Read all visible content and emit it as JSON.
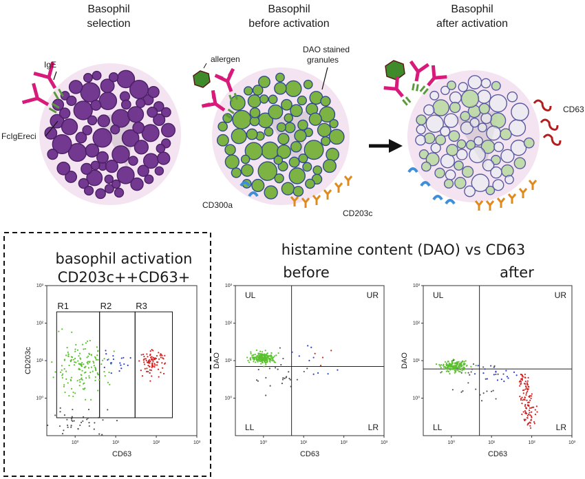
{
  "cells": {
    "selection": {
      "title1": "Basophil",
      "title2": "selection",
      "label_ige": "IgE",
      "label_receptor": "FcIgEreci"
    },
    "before": {
      "title1": "Basophil",
      "title2": "before activation",
      "label_allergen": "allergen",
      "label_granules1": "DAO stained",
      "label_granules2": "granules",
      "label_cd300a": "CD300a",
      "label_cd203c": "CD203c"
    },
    "after": {
      "title1": "Basophil",
      "title2": "after activation",
      "label_cd63": "CD63"
    }
  },
  "colors": {
    "basophil_granule": "#6b2f8a",
    "dao_granule": "#7cb342",
    "cell_body": "#f3e3f0",
    "ige": "#d81b7a",
    "receptor": "#5a9a3a",
    "cd300a": "#3f8ed8",
    "cd203c": "#e08a1e",
    "cd63": "#b71c1c",
    "allergen": "#3f8a2a"
  },
  "panels": {
    "activation": {
      "heading1": "basophil activation",
      "heading2": "CD203c++CD63+"
    },
    "histamine": {
      "heading": "histamine content (DAO) vs CD63"
    },
    "before": {
      "heading": "before"
    },
    "after": {
      "heading": "after"
    }
  },
  "chart_data": [
    {
      "type": "scatter",
      "xlabel": "CD63",
      "ylabel": "CD203c",
      "x_ticks": [
        "10⁰",
        "10¹",
        "10²",
        "10³"
      ],
      "y_ticks": [
        "10⁰",
        "10¹",
        "10²",
        "10³"
      ],
      "x_scale": "log",
      "y_scale": "log",
      "xlim": [
        0.2,
        1000
      ],
      "ylim": [
        0.1,
        1000
      ],
      "gates": [
        {
          "name": "R1",
          "x": [
            0.35,
            4
          ],
          "y": [
            0.3,
            200
          ]
        },
        {
          "name": "R2",
          "x": [
            4,
            30
          ],
          "y": [
            0.3,
            200
          ]
        },
        {
          "name": "R3",
          "x": [
            30,
            250
          ],
          "y": [
            0.3,
            200
          ]
        }
      ],
      "series": [
        {
          "color": "#5ac02e",
          "cluster": {
            "x": 1.3,
            "y": 6,
            "sx": 0.35,
            "sy": 0.35,
            "n": 150
          }
        },
        {
          "color": "#2a3fd0",
          "cluster": {
            "x": 10,
            "y": 9,
            "sx": 0.25,
            "sy": 0.12,
            "n": 18
          }
        },
        {
          "color": "#d42020",
          "cluster": {
            "x": 80,
            "y": 9,
            "sx": 0.15,
            "sy": 0.15,
            "n": 90
          }
        },
        {
          "color": "#555555",
          "cluster": {
            "x": 1.2,
            "y": 0.22,
            "sx": 0.45,
            "sy": 0.2,
            "n": 40
          }
        }
      ]
    },
    {
      "type": "scatter",
      "xlabel": "CD63",
      "ylabel": "DAO",
      "x_ticks": [
        "10⁰",
        "10¹",
        "10²",
        "10³"
      ],
      "y_ticks": [
        "10⁰",
        "10¹",
        "10²",
        "10³"
      ],
      "x_scale": "log",
      "y_scale": "log",
      "xlim": [
        0.2,
        1000
      ],
      "ylim": [
        0.1,
        1000
      ],
      "quadrants": [
        "UL",
        "UR",
        "LL",
        "LR"
      ],
      "quadrant_split": {
        "x": 5,
        "y": 7
      },
      "series": [
        {
          "color": "#5ac02e",
          "cluster": {
            "x": 1,
            "y": 12,
            "sx": 0.15,
            "sy": 0.07,
            "n": 220
          }
        },
        {
          "color": "#2a3fd0",
          "cluster": {
            "x": 12,
            "y": 10,
            "sx": 0.35,
            "sy": 0.25,
            "n": 10
          }
        },
        {
          "color": "#d42020",
          "cluster": {
            "x": 35,
            "y": 10,
            "sx": 0.2,
            "sy": 0.2,
            "n": 4
          }
        },
        {
          "color": "#555555",
          "cluster": {
            "x": 3,
            "y": 4,
            "sx": 0.4,
            "sy": 0.35,
            "n": 25
          }
        }
      ]
    },
    {
      "type": "scatter",
      "xlabel": "CD63",
      "ylabel": "DAO",
      "x_ticks": [
        "10⁰",
        "10¹",
        "10²",
        "10³"
      ],
      "y_ticks": [
        "10⁰",
        "10¹",
        "10²",
        "10³"
      ],
      "x_scale": "log",
      "y_scale": "log",
      "xlim": [
        0.2,
        1000
      ],
      "ylim": [
        0.1,
        1000
      ],
      "quadrants": [
        "UL",
        "UR",
        "LL",
        "LR"
      ],
      "quadrant_split": {
        "x": 5,
        "y": 6
      },
      "series": [
        {
          "color": "#5ac02e",
          "cluster": {
            "x": 1.2,
            "y": 7,
            "sx": 0.15,
            "sy": 0.07,
            "n": 180
          }
        },
        {
          "color": "#2a3fd0",
          "cluster": {
            "x": 12,
            "y": 5,
            "sx": 0.3,
            "sy": 0.12,
            "n": 20
          }
        },
        {
          "color": "#d42020",
          "trail": {
            "x": [
              60,
              95
            ],
            "y": [
              4,
              0.2
            ],
            "n": 110
          }
        },
        {
          "color": "#555555",
          "cluster": {
            "x": 3,
            "y": 3,
            "sx": 0.4,
            "sy": 0.3,
            "n": 25
          }
        }
      ]
    }
  ]
}
